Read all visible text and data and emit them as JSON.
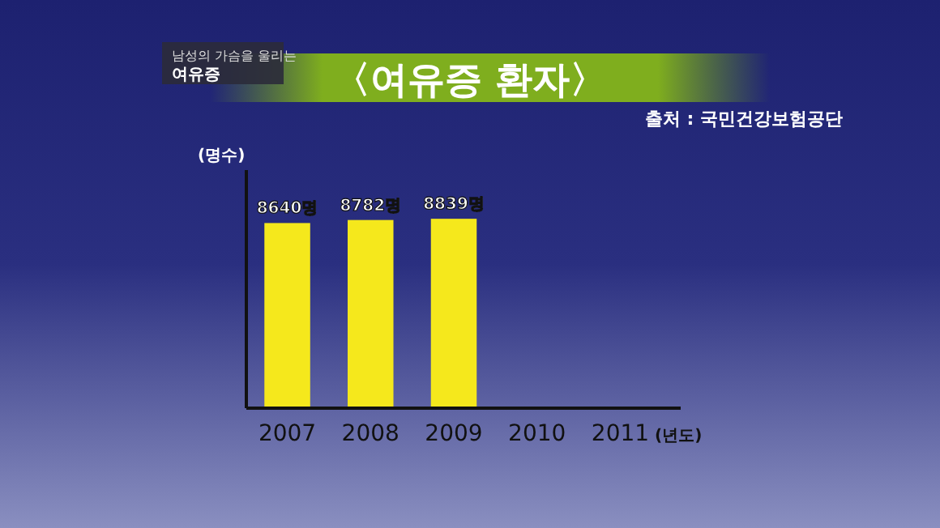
{
  "chart_data": {
    "type": "bar",
    "title": "〈여유증 환자〉",
    "subtitle": "남성의 가슴을 울리는 여유증",
    "annotations": [
      "출처 : 국민건강보험공단"
    ],
    "ylabel": "(명수)",
    "xlabel": "(년도)",
    "categories": [
      "2007",
      "2008",
      "2009",
      "2010",
      "2011"
    ],
    "values": [
      8640,
      8782,
      8839,
      null,
      null
    ],
    "value_labels": [
      "8640명",
      "8782명",
      "8839명",
      null,
      null
    ],
    "color": "#f5e81c"
  }
}
